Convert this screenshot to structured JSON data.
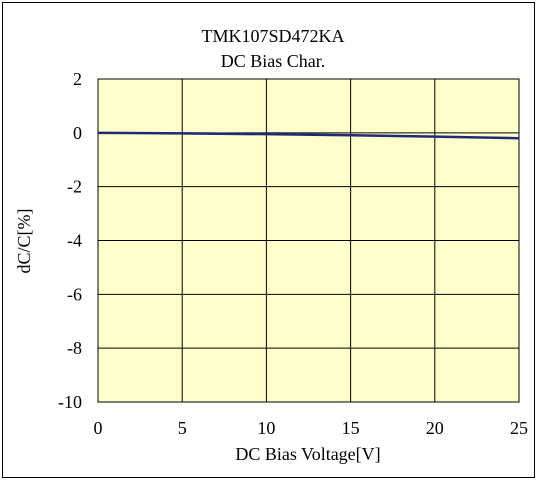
{
  "chart_data": {
    "type": "line",
    "title": "TMK107SD472KA",
    "subtitle": "DC Bias Char.",
    "xlabel": "DC Bias Voltage[V]",
    "ylabel": "dC/C[%]",
    "xlim": [
      0,
      25
    ],
    "ylim": [
      -10,
      2
    ],
    "xticks": [
      0,
      5,
      10,
      15,
      20,
      25
    ],
    "yticks": [
      2,
      0,
      -2,
      -4,
      -6,
      -8,
      -10
    ],
    "grid": true,
    "legend": "none",
    "plot_background": "#ffffcc",
    "series": [
      {
        "color": "#1f2a7a",
        "x": [
          0,
          5,
          10,
          15,
          20,
          25
        ],
        "y": [
          0,
          -0.02,
          -0.05,
          -0.09,
          -0.14,
          -0.2
        ]
      }
    ]
  }
}
